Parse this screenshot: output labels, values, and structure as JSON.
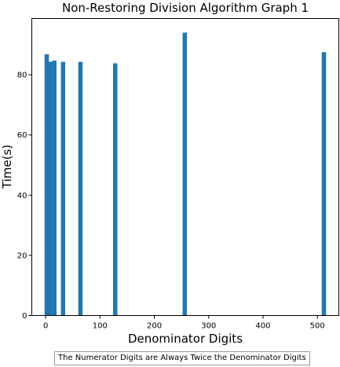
{
  "chart_data": {
    "type": "bar",
    "title": "Non-Restoring Division Algorithm Graph 1",
    "xlabel": "Denominator Digits",
    "ylabel": "Time(s)",
    "x": [
      2,
      8,
      16,
      32,
      64,
      128,
      256,
      512
    ],
    "values": [
      86.8,
      84.3,
      84.7,
      84.3,
      84.3,
      83.8,
      94.0,
      87.5
    ],
    "extra_bar": {
      "x": 4,
      "value": 83.5
    },
    "bar_color": "#1f77b4",
    "xlim": [
      -25.5,
      539.5
    ],
    "ylim": [
      0,
      98.7
    ],
    "xticks": [
      0,
      100,
      200,
      300,
      400,
      500
    ],
    "yticks": [
      0,
      20,
      40,
      60,
      80
    ],
    "grid": false,
    "caption": "The Numerator Digits are Always Twice the Denominator Digits"
  }
}
